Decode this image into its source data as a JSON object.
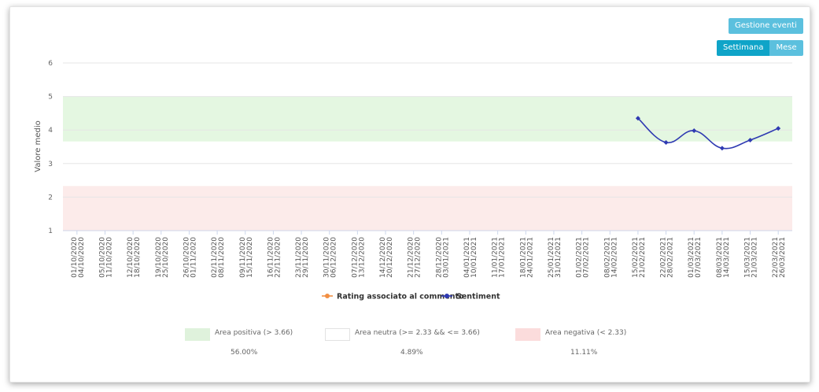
{
  "toolbar": {
    "events_label": "Gestione eventi",
    "week_label": "Settimana",
    "month_label": "Mese"
  },
  "chart_data": {
    "type": "line",
    "ylabel": "Valore medio",
    "ylim": [
      1,
      6
    ],
    "yticks": [
      "1",
      "2",
      "3",
      "4",
      "5",
      "6"
    ],
    "categories": [
      "01/10/2020 04/10/2020",
      "05/10/2020 11/10/2020",
      "12/10/2020 18/10/2020",
      "19/10/2020 25/10/2020",
      "26/10/2020 01/11/2020",
      "02/11/2020 08/11/2020",
      "09/11/2020 15/11/2020",
      "16/11/2020 22/11/2020",
      "23/11/2020 29/11/2020",
      "30/11/2020 06/12/2020",
      "07/12/2020 13/12/2020",
      "14/12/2020 20/12/2020",
      "21/12/2020 27/12/2020",
      "28/12/2020 03/01/2021",
      "04/01/2021 10/01/2021",
      "11/01/2021 17/01/2021",
      "18/01/2021 24/01/2021",
      "25/01/2021 31/01/2021",
      "01/02/2021 07/02/2021",
      "08/02/2021 14/02/2021",
      "15/02/2021 21/02/2021",
      "22/02/2021 28/02/2021",
      "01/03/2021 07/03/2021",
      "08/03/2021 14/03/2021",
      "15/03/2021 21/03/2021",
      "22/03/2021 26/03/2021"
    ],
    "series": [
      {
        "name": "Rating associato al commento",
        "color": "#f28f43",
        "values": [
          null,
          null,
          null,
          null,
          null,
          null,
          null,
          null,
          null,
          null,
          null,
          null,
          null,
          null,
          null,
          null,
          null,
          null,
          null,
          null,
          null,
          null,
          null,
          null,
          null,
          null
        ]
      },
      {
        "name": "Sentiment",
        "color": "#2f3ab2",
        "values": [
          null,
          null,
          null,
          null,
          null,
          null,
          null,
          null,
          null,
          null,
          null,
          null,
          null,
          null,
          null,
          null,
          null,
          null,
          null,
          null,
          4.35,
          3.63,
          3.98,
          3.46,
          3.7,
          4.05
        ]
      }
    ],
    "bands": [
      {
        "from": 3.66,
        "to": 5,
        "color": "#e4f7e1"
      },
      {
        "from": 1,
        "to": 2.33,
        "color": "#fcebea"
      }
    ],
    "grid": true,
    "legend_position": "bottom-center"
  },
  "areas": [
    {
      "label": "Area positiva (> 3.66)",
      "percent": "56.00%",
      "color": "#dff2dc"
    },
    {
      "label": "Area neutra (>= 2.33 && <= 3.66)",
      "percent": "4.89%",
      "color": "#ffffff"
    },
    {
      "label": "Area negativa (< 2.33)",
      "percent": "11.11%",
      "color": "#fbdcdc"
    }
  ]
}
